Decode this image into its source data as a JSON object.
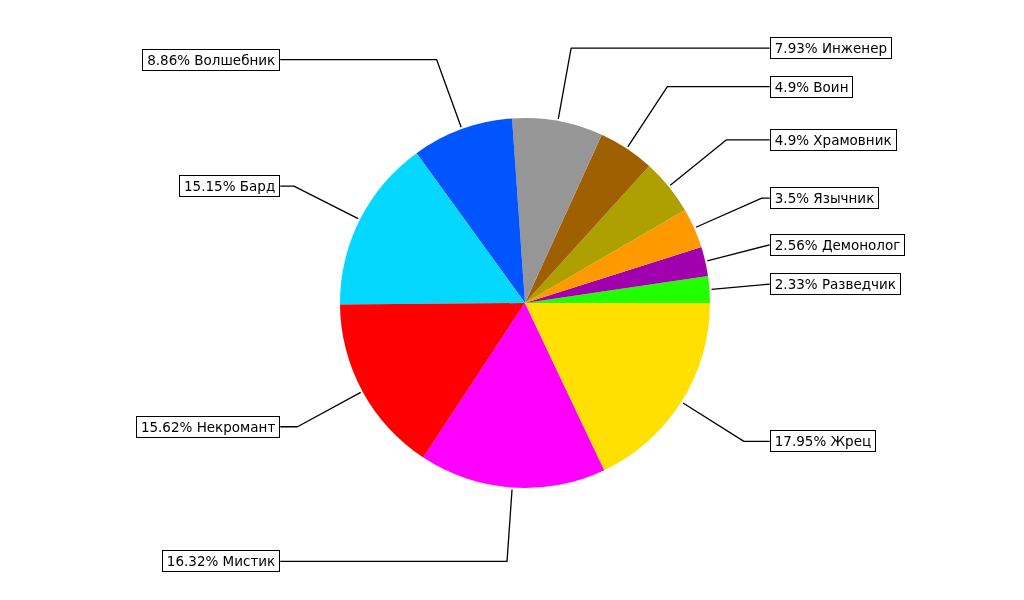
{
  "chart_data": {
    "type": "pie",
    "categories": [
      "Разведчик",
      "Демонолог",
      "Язычник",
      "Храмовник",
      "Воин",
      "Инженер",
      "Волшебник",
      "Бард",
      "Некромант",
      "Мистик",
      "Жрец"
    ],
    "values": [
      2.33,
      2.56,
      3.5,
      4.9,
      4.9,
      7.93,
      8.86,
      15.15,
      15.62,
      16.32,
      17.95
    ],
    "colors": [
      "#22ff00",
      "#a000ae",
      "#ff9900",
      "#aea000",
      "#9e6000",
      "#969696",
      "#0055ff",
      "#05d8ff",
      "#ff0000",
      "#ff00ff",
      "#ffe000"
    ],
    "value_labels": [
      "2.33%",
      "2.56%",
      "3.5%",
      "4.9%",
      "4.9%",
      "7.93%",
      "8.86%",
      "15.15%",
      "15.62%",
      "16.32%",
      "17.95%"
    ]
  }
}
